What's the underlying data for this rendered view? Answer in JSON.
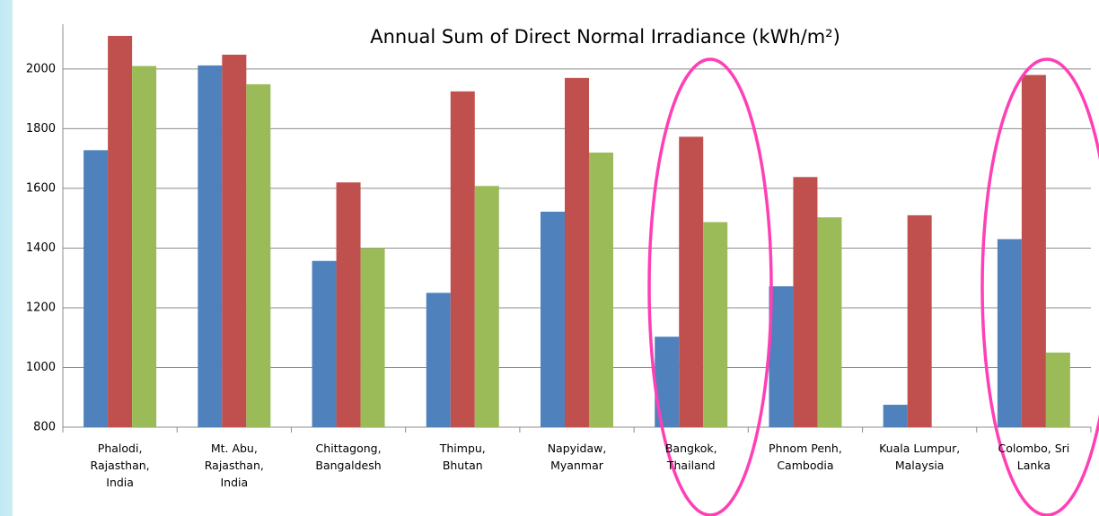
{
  "chart_data": {
    "type": "bar",
    "title": "Annual Sum of Direct Normal Irradiance (kWh/m²)",
    "categories": [
      "Phalodi,\nRajasthan,\nIndia",
      "Mt. Abu,\nRajasthan,\nIndia",
      "Chittagong,\nBangaldesh",
      "Thimpu,\nBhutan",
      "Napyidaw,\nMyanmar",
      "Bangkok,\nThailand",
      "Phnom Penh,\nCambodia",
      "Kuala Lumpur,\nMalaysia",
      "Colombo, Sri\nLanka"
    ],
    "series": [
      {
        "color": "#4f81bd",
        "values": [
          1728,
          2012,
          1357,
          1250,
          1522,
          1103,
          1272,
          875,
          1430
        ]
      },
      {
        "color": "#c0504d",
        "values": [
          2111,
          2048,
          1620,
          1925,
          1970,
          1773,
          1638,
          1510,
          1980
        ]
      },
      {
        "color": "#9bbb59",
        "values": [
          2010,
          1949,
          1400,
          1608,
          1720,
          1487,
          1503,
          null,
          1050
        ]
      }
    ],
    "ylim": [
      800,
      2150
    ],
    "yticks": [
      800,
      1000,
      1200,
      1400,
      1600,
      1800,
      2000
    ],
    "grid": true
  }
}
